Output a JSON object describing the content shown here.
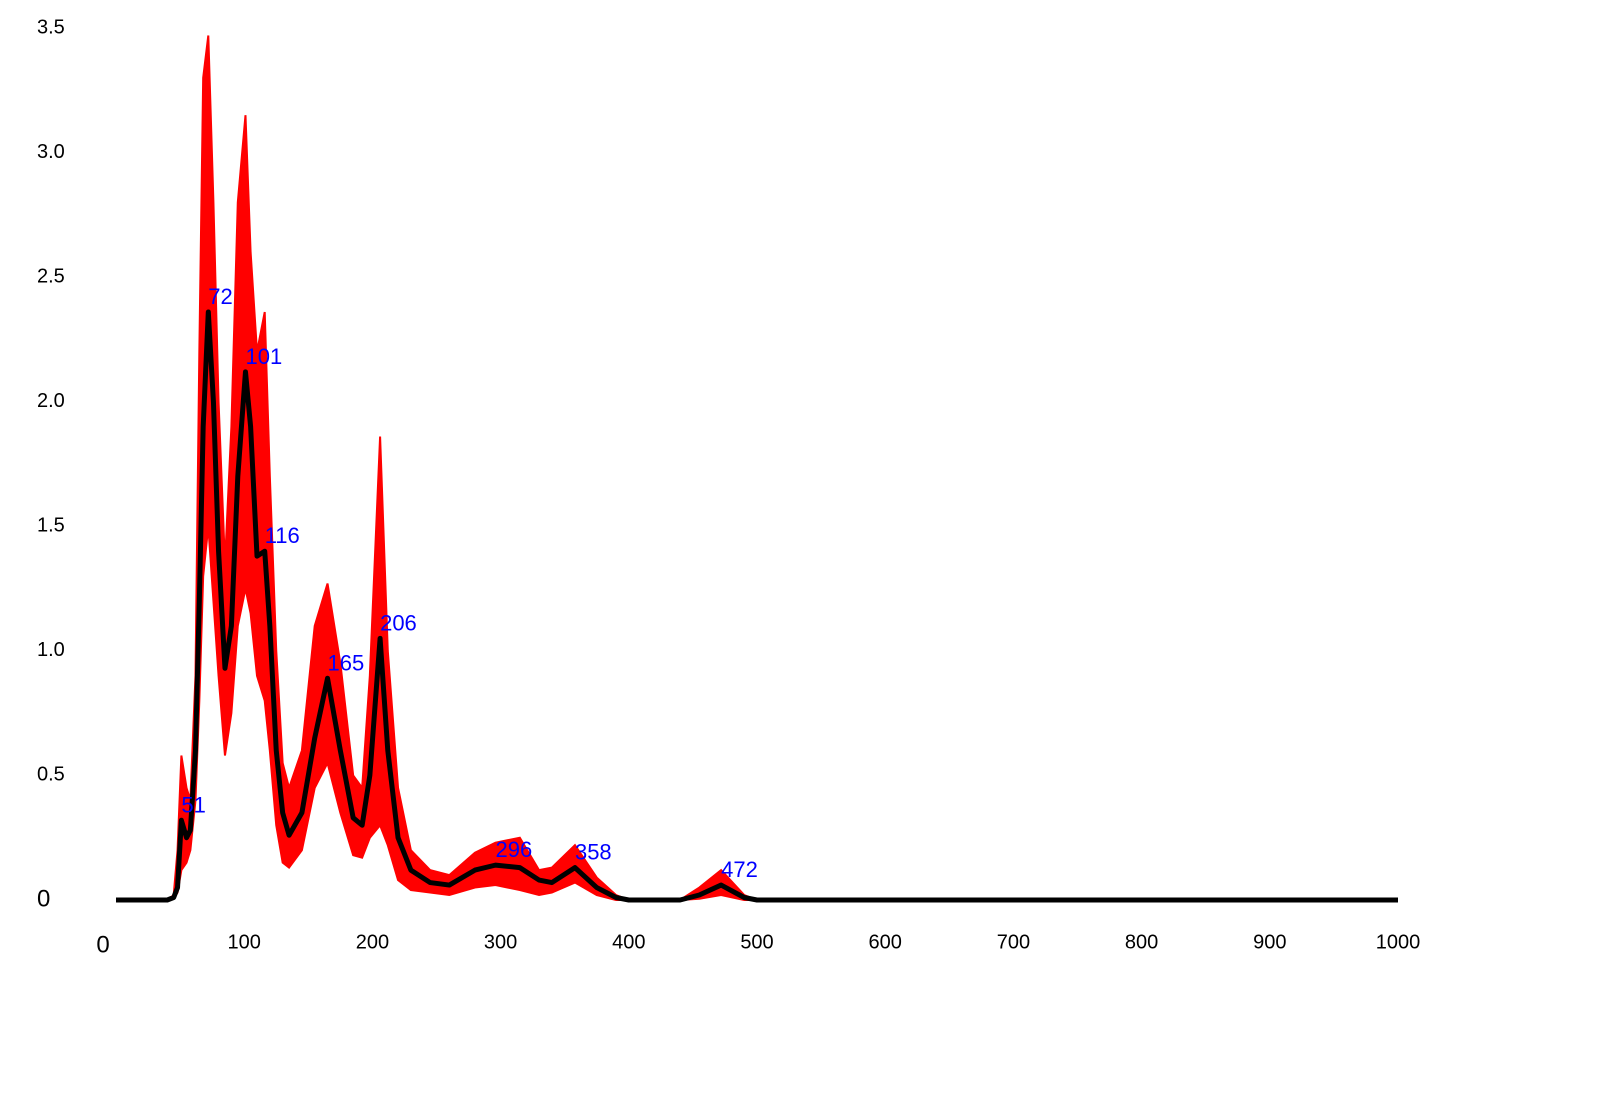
{
  "chart_data": {
    "type": "line",
    "x": [
      0,
      40,
      45,
      48,
      51,
      55,
      58,
      62,
      65,
      68,
      72,
      76,
      80,
      85,
      90,
      95,
      101,
      105,
      110,
      116,
      120,
      125,
      130,
      135,
      145,
      155,
      165,
      175,
      185,
      192,
      198,
      206,
      212,
      220,
      230,
      245,
      260,
      280,
      296,
      315,
      330,
      340,
      358,
      375,
      390,
      400,
      440,
      455,
      472,
      490,
      500,
      1000
    ],
    "series": [
      {
        "color": "#000000",
        "band_color": "#ff0000",
        "values": [
          0,
          0,
          0.01,
          0.05,
          0.32,
          0.25,
          0.28,
          0.6,
          1.2,
          1.9,
          2.36,
          2.0,
          1.4,
          0.93,
          1.1,
          1.7,
          2.12,
          1.9,
          1.38,
          1.4,
          1.1,
          0.6,
          0.35,
          0.26,
          0.35,
          0.65,
          0.89,
          0.6,
          0.33,
          0.3,
          0.5,
          1.05,
          0.6,
          0.25,
          0.12,
          0.07,
          0.06,
          0.12,
          0.14,
          0.13,
          0.08,
          0.07,
          0.13,
          0.05,
          0.01,
          0,
          0,
          0.02,
          0.06,
          0.01,
          0,
          0
        ],
        "lower": [
          0,
          0,
          0.005,
          0.03,
          0.12,
          0.15,
          0.2,
          0.4,
          0.8,
          1.3,
          1.5,
          1.2,
          0.9,
          0.58,
          0.75,
          1.1,
          1.25,
          1.15,
          0.9,
          0.8,
          0.6,
          0.3,
          0.15,
          0.13,
          0.2,
          0.45,
          0.55,
          0.35,
          0.18,
          0.17,
          0.25,
          0.3,
          0.22,
          0.08,
          0.04,
          0.03,
          0.02,
          0.05,
          0.06,
          0.04,
          0.02,
          0.03,
          0.07,
          0.02,
          0,
          0,
          0,
          0.005,
          0.02,
          0,
          0,
          0
        ],
        "upper": [
          0,
          0,
          0.02,
          0.2,
          0.58,
          0.45,
          0.4,
          0.9,
          2.2,
          3.3,
          3.47,
          2.8,
          2.0,
          1.35,
          1.9,
          2.8,
          3.15,
          2.6,
          2.2,
          2.36,
          1.7,
          1.0,
          0.55,
          0.45,
          0.6,
          1.1,
          1.27,
          0.95,
          0.5,
          0.45,
          0.9,
          1.86,
          1.0,
          0.45,
          0.2,
          0.12,
          0.1,
          0.19,
          0.23,
          0.25,
          0.12,
          0.13,
          0.22,
          0.09,
          0.02,
          0,
          0,
          0.05,
          0.12,
          0.02,
          0,
          0
        ]
      }
    ],
    "peaks": {
      "color": "#0000ff",
      "x": [
        51,
        72,
        101,
        116,
        165,
        206,
        296,
        358,
        472
      ],
      "y": [
        0.32,
        2.36,
        2.12,
        1.4,
        0.89,
        1.05,
        0.14,
        0.13,
        0.06
      ]
    },
    "xlim": [
      0,
      1000
    ],
    "xticks": [
      0,
      100,
      200,
      300,
      400,
      500,
      600,
      700,
      800,
      900,
      1000
    ],
    "ylim": [
      0,
      3.5
    ],
    "yticks": [
      0,
      0.5,
      {
        "value": 1,
        "label": "1.0"
      },
      1.5,
      {
        "value": 2,
        "label": "2.0"
      },
      2.5,
      {
        "value": 3,
        "label": "3.0"
      },
      3.5
    ],
    "grid": false
  }
}
